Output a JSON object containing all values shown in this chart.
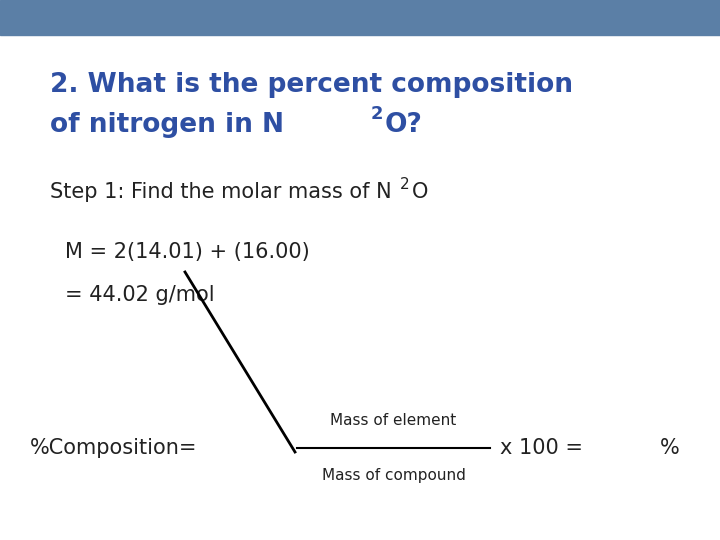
{
  "background_color": "#ffffff",
  "header_color": "#5b7fa6",
  "title_line1": "2. What is the percent composition",
  "title_line2_pre": "of nitrogen in N",
  "title_sub": "2",
  "title_line2_post": "O?",
  "title_color": "#2e4fa3",
  "title_fontsize": 19,
  "step_pre": "Step 1: Find the molar mass of N",
  "step_sub": "2",
  "step_post": "O",
  "step_color": "#222222",
  "step_fontsize": 15,
  "eq_line1": "M = 2(14.01) + (16.00)",
  "eq_line2": "= 44.02 g/mol",
  "eq_color": "#222222",
  "eq_fontsize": 15,
  "pct_label": "%Composition=",
  "pct_num": "Mass of element",
  "pct_den": "Mass of compound",
  "pct_end": "x 100 =",
  "pct_percent": "%",
  "pct_color": "#222222",
  "pct_fontsize": 15,
  "pct_small_fontsize": 11
}
